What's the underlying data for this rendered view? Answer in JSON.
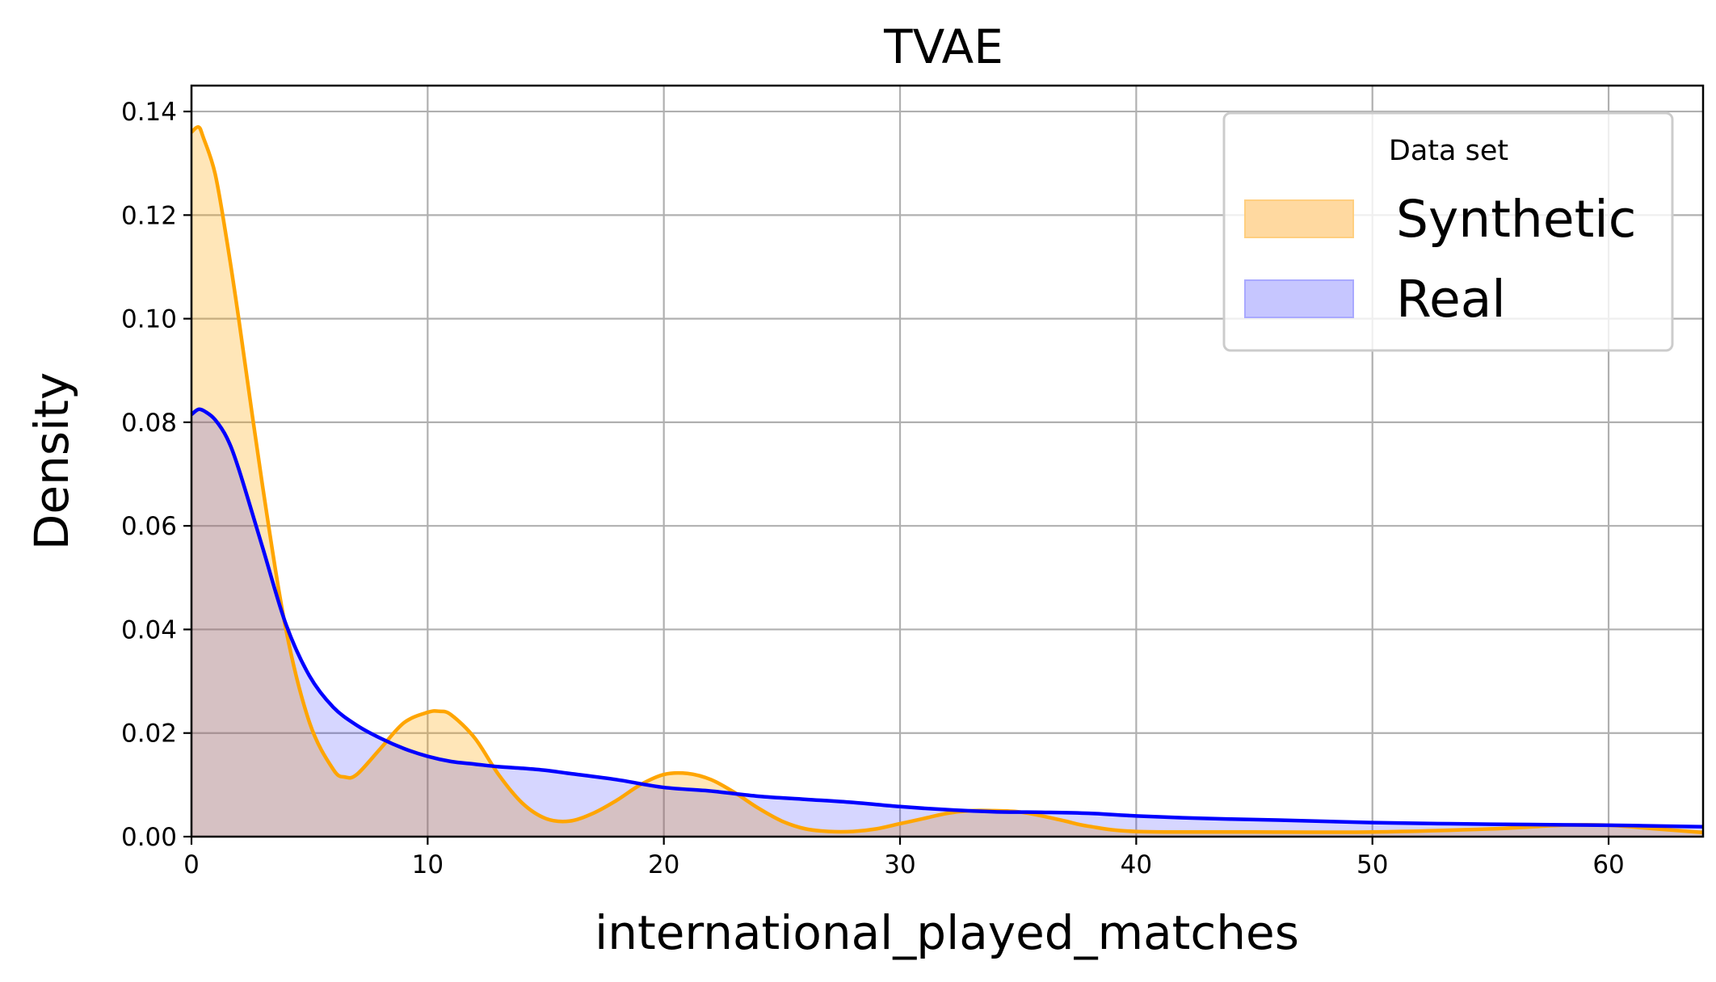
{
  "chart_data": {
    "type": "area",
    "title": "TVAE",
    "xlabel": "international_played_matches",
    "ylabel": "Density",
    "xlim": [
      0,
      64
    ],
    "ylim": [
      0,
      0.145
    ],
    "x_ticks": [
      0,
      10,
      20,
      30,
      40,
      50,
      60
    ],
    "x_tick_labels": [
      "0",
      "10",
      "20",
      "30",
      "40",
      "50",
      "60"
    ],
    "y_ticks": [
      0,
      0.02,
      0.04,
      0.06,
      0.08,
      0.1,
      0.12,
      0.14
    ],
    "y_tick_labels": [
      "0.00",
      "0.02",
      "0.04",
      "0.06",
      "0.08",
      "0.10",
      "0.12",
      "0.14"
    ],
    "grid": true,
    "legend": {
      "title": "Data set",
      "placement": "top-right",
      "entries": [
        "Synthetic",
        "Real"
      ]
    },
    "colors": {
      "Synthetic": "#ffa500",
      "Real": "#0000ff",
      "Synthetic_fill": "#ffd9a0",
      "Real_fill": "#c6c6ff",
      "overlap": "#d9c2bf",
      "grid": "#b0b0b0"
    },
    "series": [
      {
        "name": "Synthetic",
        "x": [
          0,
          0.3,
          0.5,
          1,
          1.5,
          2,
          3,
          4,
          5,
          6,
          6.5,
          7,
          8,
          9,
          10,
          10.5,
          11,
          12,
          13,
          14,
          15,
          16,
          17,
          18,
          19,
          20,
          21,
          22,
          23,
          24,
          25,
          26,
          27,
          28,
          29,
          30,
          31,
          32,
          33,
          34,
          35,
          36,
          37,
          38,
          40,
          45,
          50,
          55,
          58,
          60,
          62,
          64
        ],
        "y": [
          0.136,
          0.137,
          0.135,
          0.128,
          0.115,
          0.1,
          0.068,
          0.04,
          0.022,
          0.013,
          0.0115,
          0.012,
          0.017,
          0.022,
          0.024,
          0.0242,
          0.0235,
          0.019,
          0.012,
          0.0065,
          0.0035,
          0.003,
          0.0045,
          0.007,
          0.01,
          0.012,
          0.0122,
          0.011,
          0.0085,
          0.0055,
          0.003,
          0.0015,
          0.001,
          0.001,
          0.0015,
          0.0025,
          0.0035,
          0.0045,
          0.005,
          0.005,
          0.0048,
          0.004,
          0.003,
          0.002,
          0.001,
          0.0009,
          0.0009,
          0.0015,
          0.0022,
          0.0022,
          0.0015,
          0.0008
        ]
      },
      {
        "name": "Real",
        "x": [
          0,
          0.3,
          0.6,
          1,
          1.5,
          2,
          3,
          4,
          5,
          6,
          7,
          8,
          9,
          10,
          11,
          12,
          13,
          14,
          15,
          16,
          18,
          20,
          22,
          24,
          26,
          28,
          30,
          32,
          34,
          36,
          38,
          40,
          43,
          46,
          50,
          55,
          60,
          64
        ],
        "y": [
          0.0815,
          0.0825,
          0.082,
          0.0805,
          0.077,
          0.071,
          0.056,
          0.041,
          0.031,
          0.025,
          0.0215,
          0.019,
          0.017,
          0.0155,
          0.0145,
          0.014,
          0.0135,
          0.0132,
          0.0128,
          0.0122,
          0.011,
          0.0095,
          0.0088,
          0.0078,
          0.0072,
          0.0066,
          0.0058,
          0.0052,
          0.0048,
          0.0047,
          0.0045,
          0.004,
          0.0035,
          0.0032,
          0.0027,
          0.0024,
          0.0022,
          0.0019
        ]
      }
    ]
  }
}
